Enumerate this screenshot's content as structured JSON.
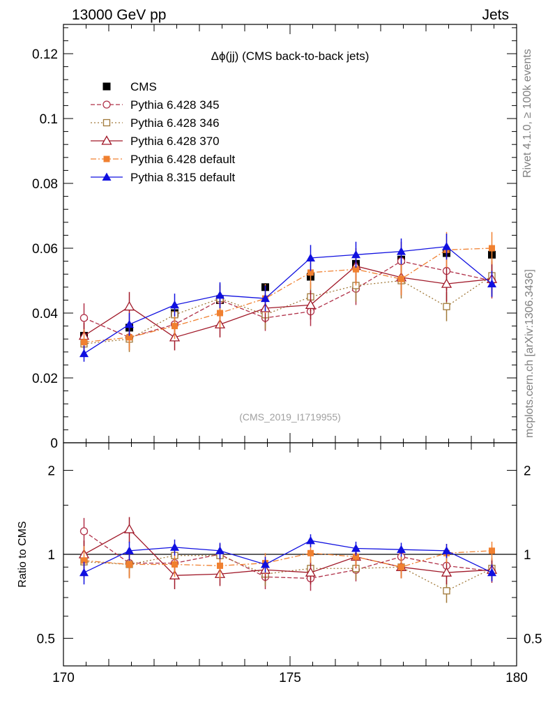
{
  "header": {
    "left": "13000 GeV pp",
    "right": "Jets"
  },
  "side": {
    "rivet": "Rivet 4.1.0, ≥ 100k events",
    "mcplots": "mcplots.cern.ch [arXiv:1306.3436]"
  },
  "watermark": "(CMS_2019_I1719955)",
  "colors": {
    "cms": "#000000",
    "p345": "#b03048",
    "p346": "#a07838",
    "p370": "#a01828",
    "p6def": "#f08030",
    "p8def": "#1010e0"
  },
  "chart_data": [
    {
      "type": "line",
      "title": "Δϕ(jj) (CMS back-to-back jets)",
      "xlabel": "",
      "ylabel": "",
      "xlim": [
        170,
        180
      ],
      "ylim": [
        0,
        0.13
      ],
      "yticks": [
        0,
        0.02,
        0.04,
        0.06,
        0.08,
        0.1,
        0.12
      ],
      "ytick_labels": [
        "0",
        "0.02",
        "0.04",
        "0.06",
        "0.08",
        "0.1",
        "0.12"
      ],
      "x": [
        170.5,
        171.5,
        172.5,
        173.5,
        174.5,
        175.5,
        176.5,
        177.5,
        178.5,
        179.5
      ],
      "legend_position": "top-left",
      "series": [
        {
          "name": "CMS",
          "key": "cms",
          "marker": "square",
          "line": "none",
          "values": [
            0.033,
            0.0355,
            0.04,
            0.044,
            0.048,
            0.0512,
            0.0552,
            0.0565,
            0.0585,
            0.058
          ],
          "errors": [
            0.0012,
            0.0012,
            0.0012,
            0.0012,
            0.0012,
            0.0012,
            0.0012,
            0.0012,
            0.0012,
            0.0012
          ]
        },
        {
          "name": "Pythia 6.428 345",
          "key": "p345",
          "marker": "open-circle",
          "line": "dashed",
          "values": [
            0.0385,
            0.0325,
            0.0365,
            0.044,
            0.0385,
            0.0405,
            0.0475,
            0.056,
            0.053,
            0.05
          ],
          "errors": [
            0.0045,
            0.004,
            0.004,
            0.0045,
            0.004,
            0.0045,
            0.005,
            0.006,
            0.006,
            0.0055
          ]
        },
        {
          "name": "Pythia 6.428 346",
          "key": "p346",
          "marker": "open-square",
          "line": "dotted",
          "values": [
            0.0305,
            0.032,
            0.0395,
            0.0445,
            0.0395,
            0.045,
            0.0485,
            0.05,
            0.042,
            0.0515
          ],
          "errors": [
            0.004,
            0.004,
            0.004,
            0.0045,
            0.0045,
            0.0045,
            0.005,
            0.0055,
            0.0045,
            0.0055
          ]
        },
        {
          "name": "Pythia 6.428 370",
          "key": "p370",
          "marker": "open-triangle",
          "line": "solid",
          "values": [
            0.033,
            0.042,
            0.0325,
            0.0365,
            0.0415,
            0.0425,
            0.0545,
            0.051,
            0.049,
            0.0505
          ],
          "errors": [
            0.004,
            0.0045,
            0.004,
            0.004,
            0.0045,
            0.0045,
            0.0055,
            0.0055,
            0.0055,
            0.0055
          ]
        },
        {
          "name": "Pythia 6.428 default",
          "key": "p6def",
          "marker": "filled-square",
          "line": "dashdot",
          "values": [
            0.031,
            0.0325,
            0.036,
            0.04,
            0.0445,
            0.0525,
            0.0535,
            0.0505,
            0.0595,
            0.06
          ],
          "errors": [
            0.004,
            0.004,
            0.004,
            0.0045,
            0.0045,
            0.005,
            0.005,
            0.005,
            0.0055,
            0.005
          ]
        },
        {
          "name": "Pythia 8.315 default",
          "key": "p8def",
          "marker": "filled-triangle",
          "line": "solid",
          "values": [
            0.0275,
            0.0365,
            0.0425,
            0.0455,
            0.0445,
            0.057,
            0.058,
            0.059,
            0.0605,
            0.049
          ],
          "errors": [
            0.0025,
            0.0035,
            0.0035,
            0.004,
            0.004,
            0.004,
            0.004,
            0.004,
            0.004,
            0.004
          ]
        }
      ]
    },
    {
      "type": "line",
      "title": "",
      "xlabel": "",
      "ylabel": "Ratio to CMS",
      "xlim": [
        170,
        180
      ],
      "yscale": "log",
      "ylim": [
        0.4,
        2.5
      ],
      "yticks": [
        0.5,
        1,
        2
      ],
      "ytick_labels": [
        "0.5",
        "1",
        "2"
      ],
      "xticks": [
        170,
        175,
        180
      ],
      "xtick_labels": [
        "170",
        "175",
        "180"
      ],
      "reference_line": 1,
      "x": [
        170.5,
        171.5,
        172.5,
        173.5,
        174.5,
        175.5,
        176.5,
        177.5,
        178.5,
        179.5
      ],
      "series": [
        {
          "name": "Pythia 6.428 345",
          "key": "p345",
          "marker": "open-circle",
          "line": "dashed",
          "values": [
            1.21,
            0.93,
            0.93,
            1.0,
            0.83,
            0.82,
            0.88,
            0.98,
            0.91,
            0.87
          ],
          "errors": [
            0.14,
            0.1,
            0.09,
            0.09,
            0.08,
            0.08,
            0.08,
            0.09,
            0.09,
            0.08
          ]
        },
        {
          "name": "Pythia 6.428 346",
          "key": "p346",
          "marker": "open-square",
          "line": "dotted",
          "values": [
            0.94,
            0.92,
            0.99,
            0.99,
            0.85,
            0.89,
            0.89,
            0.9,
            0.74,
            0.89
          ],
          "errors": [
            0.12,
            0.1,
            0.09,
            0.09,
            0.08,
            0.08,
            0.08,
            0.08,
            0.07,
            0.08
          ]
        },
        {
          "name": "Pythia 6.428 370",
          "key": "p370",
          "marker": "open-triangle",
          "line": "solid",
          "values": [
            1.0,
            1.23,
            0.84,
            0.85,
            0.88,
            0.86,
            0.98,
            0.9,
            0.86,
            0.88
          ],
          "errors": [
            0.12,
            0.13,
            0.09,
            0.08,
            0.08,
            0.08,
            0.09,
            0.08,
            0.08,
            0.08
          ]
        },
        {
          "name": "Pythia 6.428 default",
          "key": "p6def",
          "marker": "filled-square",
          "line": "dashdot",
          "values": [
            0.95,
            0.92,
            0.92,
            0.91,
            0.93,
            1.01,
            0.98,
            0.9,
            1.01,
            1.03
          ],
          "errors": [
            0.12,
            0.1,
            0.09,
            0.09,
            0.08,
            0.08,
            0.08,
            0.08,
            0.08,
            0.08
          ]
        },
        {
          "name": "Pythia 8.315 default",
          "key": "p8def",
          "marker": "filled-triangle",
          "line": "solid",
          "values": [
            0.86,
            1.03,
            1.06,
            1.03,
            0.92,
            1.12,
            1.05,
            1.04,
            1.03,
            0.86
          ],
          "errors": [
            0.08,
            0.08,
            0.07,
            0.07,
            0.06,
            0.06,
            0.06,
            0.06,
            0.06,
            0.06
          ]
        }
      ]
    }
  ]
}
